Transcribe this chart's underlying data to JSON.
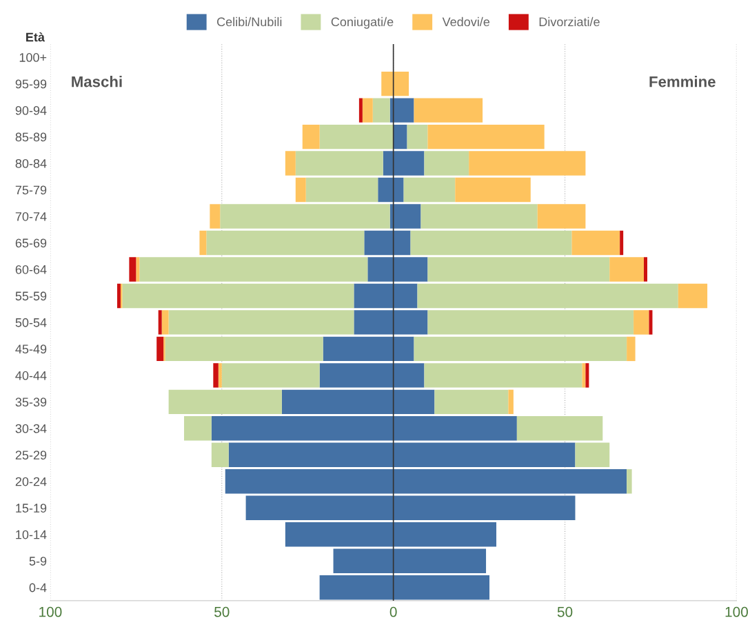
{
  "chart_data": {
    "type": "bar",
    "orientation": "horizontal",
    "stacked": true,
    "ylabel": "Età",
    "annotations": [
      "Maschi",
      "Femmine"
    ],
    "categories": [
      "100+",
      "95-99",
      "90-94",
      "85-89",
      "80-84",
      "75-79",
      "70-74",
      "65-69",
      "60-64",
      "55-59",
      "50-54",
      "45-49",
      "40-44",
      "35-39",
      "30-34",
      "25-29",
      "20-24",
      "15-19",
      "10-14",
      "5-9",
      "0-4"
    ],
    "series": [
      {
        "name": "Celibi/Nubili",
        "color": "#4471a5",
        "values": [
          0,
          0,
          -1,
          0,
          -3,
          -4.5,
          -1,
          -8.5,
          -7.5,
          -11.5,
          -11.5,
          -20.5,
          -21.5,
          -32.5,
          -53,
          -48,
          -49,
          -43,
          -31.5,
          -17.5,
          -21.5
        ]
      },
      {
        "name": "Coniugati/e",
        "color": "#c6d9a1",
        "values": [
          0,
          0,
          -5,
          -21.5,
          -25.5,
          -21,
          -49.5,
          -46,
          -66.5,
          -67.5,
          -54,
          -46,
          -28.5,
          -33,
          -8,
          -5,
          0,
          0,
          0,
          0,
          0
        ]
      },
      {
        "name": "Vedovi/e",
        "color": "#fec35e",
        "values": [
          0,
          -3.5,
          -3,
          -5,
          -3,
          -3,
          -3,
          -2,
          -1,
          -0.5,
          -2,
          -0.5,
          -1,
          0,
          0,
          0,
          0,
          0,
          0,
          0,
          0
        ]
      },
      {
        "name": "Divorziati/e",
        "color": "#cc1111",
        "values": [
          0,
          0,
          -1,
          0,
          0,
          0,
          0,
          0,
          -2,
          -1,
          -1,
          -2,
          -1.5,
          0,
          0,
          0,
          0,
          0,
          0,
          0,
          0
        ]
      },
      {
        "color": "#4471a5",
        "values": [
          0,
          0,
          6,
          4,
          9,
          3,
          8,
          5,
          10,
          7,
          10,
          6,
          9,
          12,
          36,
          53,
          68,
          53,
          30,
          27,
          28
        ]
      },
      {
        "color": "#c6d9a1",
        "values": [
          0,
          0,
          0,
          6,
          13,
          15,
          34,
          47,
          53,
          76,
          60,
          62,
          46,
          21.5,
          25,
          10,
          1.5,
          0,
          0,
          0,
          0
        ]
      },
      {
        "color": "#fec35e",
        "values": [
          0,
          4.5,
          20,
          34,
          34,
          22,
          14,
          14,
          10,
          8.5,
          4.5,
          2.5,
          1,
          1.5,
          0,
          0,
          0,
          0,
          0,
          0,
          0
        ]
      },
      {
        "color": "#cc1111",
        "values": [
          0,
          0,
          0,
          0,
          0,
          0,
          0,
          1,
          1,
          0,
          1,
          0,
          1,
          0,
          0,
          0,
          0,
          0,
          0,
          0,
          0
        ]
      }
    ],
    "xlim": [
      -100,
      100
    ],
    "xticks": [
      {
        "value": -100,
        "label": "100"
      },
      {
        "value": -50,
        "label": "50"
      },
      0,
      50,
      100
    ],
    "ref_lines": [
      {
        "axis": "x",
        "value": 0,
        "color": "#333333"
      }
    ],
    "grid": "x",
    "legend": "top"
  }
}
